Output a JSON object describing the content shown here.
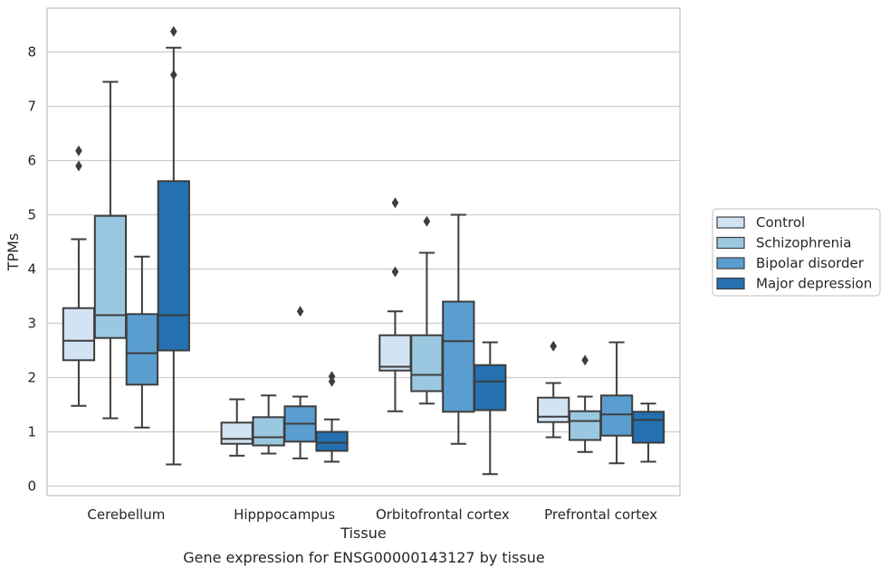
{
  "chart_data": {
    "type": "box",
    "xlabel": "Tissue",
    "ylabel": "TPMs",
    "caption": "Gene expression for ENSG00000143127 by tissue",
    "ylim": [
      -0.15,
      8.8
    ],
    "yticks": [
      0,
      1,
      2,
      3,
      4,
      5,
      6,
      7,
      8
    ],
    "grid": "horizontal",
    "legend_position": "right",
    "categories": [
      "Cerebellum",
      "Hipppocampus",
      "Orbitofrontal cortex",
      "Prefrontal cortex"
    ],
    "series": [
      {
        "name": "Control",
        "color": "#d2e3f3",
        "boxes": [
          {
            "whislo": 1.48,
            "q1": 2.32,
            "med": 2.68,
            "q3": 3.28,
            "whishi": 4.55,
            "fliers": [
              5.9,
              6.18
            ]
          },
          {
            "whislo": 0.56,
            "q1": 0.78,
            "med": 0.87,
            "q3": 1.17,
            "whishi": 1.6,
            "fliers": []
          },
          {
            "whislo": 1.38,
            "q1": 2.13,
            "med": 2.2,
            "q3": 2.78,
            "whishi": 3.22,
            "fliers": [
              3.95,
              5.22
            ]
          },
          {
            "whislo": 0.9,
            "q1": 1.18,
            "med": 1.28,
            "q3": 1.63,
            "whishi": 1.9,
            "fliers": [
              2.58
            ]
          }
        ]
      },
      {
        "name": "Schizophrenia",
        "color": "#9ac8e0",
        "boxes": [
          {
            "whislo": 1.25,
            "q1": 2.73,
            "med": 3.15,
            "q3": 4.98,
            "whishi": 7.45,
            "fliers": []
          },
          {
            "whislo": 0.6,
            "q1": 0.75,
            "med": 0.9,
            "q3": 1.27,
            "whishi": 1.67,
            "fliers": []
          },
          {
            "whislo": 1.52,
            "q1": 1.75,
            "med": 2.05,
            "q3": 2.78,
            "whishi": 4.3,
            "fliers": [
              4.88
            ]
          },
          {
            "whislo": 0.63,
            "q1": 0.85,
            "med": 1.2,
            "q3": 1.38,
            "whishi": 1.65,
            "fliers": [
              2.32
            ]
          }
        ]
      },
      {
        "name": "Bipolar disorder",
        "color": "#5a9ecf",
        "boxes": [
          {
            "whislo": 1.08,
            "q1": 1.87,
            "med": 2.45,
            "q3": 3.17,
            "whishi": 4.23,
            "fliers": []
          },
          {
            "whislo": 0.51,
            "q1": 0.82,
            "med": 1.15,
            "q3": 1.47,
            "whishi": 1.65,
            "fliers": [
              3.22
            ]
          },
          {
            "whislo": 0.78,
            "q1": 1.37,
            "med": 2.67,
            "q3": 3.4,
            "whishi": 5.0,
            "fliers": []
          },
          {
            "whislo": 0.42,
            "q1": 0.93,
            "med": 1.32,
            "q3": 1.67,
            "whishi": 2.65,
            "fliers": []
          }
        ]
      },
      {
        "name": "Major depression",
        "color": "#2470b1",
        "boxes": [
          {
            "whislo": 0.4,
            "q1": 2.5,
            "med": 3.15,
            "q3": 5.62,
            "whishi": 8.08,
            "fliers": [
              7.58,
              8.38
            ]
          },
          {
            "whislo": 0.45,
            "q1": 0.65,
            "med": 0.8,
            "q3": 1.0,
            "whishi": 1.23,
            "fliers": [
              1.93,
              2.02
            ]
          },
          {
            "whislo": 0.22,
            "q1": 1.4,
            "med": 1.93,
            "q3": 2.23,
            "whishi": 2.65,
            "fliers": []
          },
          {
            "whislo": 0.45,
            "q1": 0.8,
            "med": 1.22,
            "q3": 1.37,
            "whishi": 1.52,
            "fliers": []
          }
        ]
      }
    ]
  }
}
